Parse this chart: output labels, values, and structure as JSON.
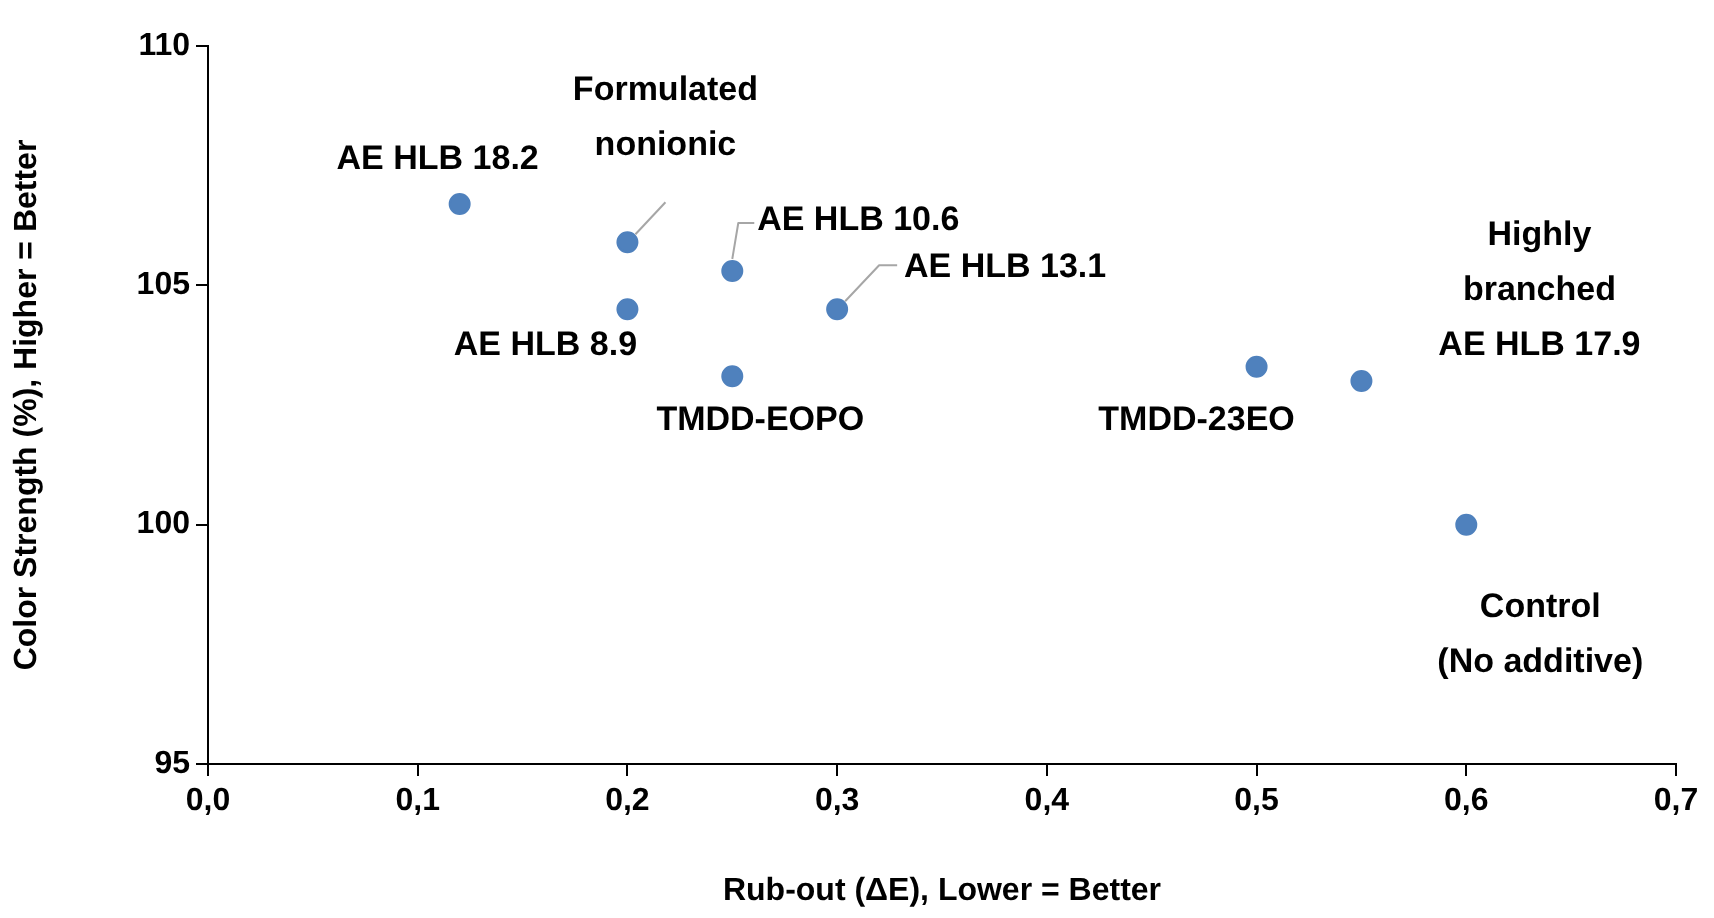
{
  "chart_data": {
    "type": "scatter",
    "xlabel": "Rub-out (ΔE), Lower = Better",
    "ylabel": "Color Strength (%), Higher = Better",
    "x": [
      0.12,
      0.2,
      0.2,
      0.25,
      0.25,
      0.3,
      0.5,
      0.55,
      0.6
    ],
    "series": [
      {
        "color": "#4f81bd",
        "values": [
          106.7,
          105.9,
          104.5,
          105.3,
          103.1,
          104.5,
          103.3,
          103.0,
          100.0
        ]
      }
    ],
    "xlim": [
      0,
      0.7
    ],
    "xticks": [
      {
        "value": 0,
        "label": "0,0"
      },
      {
        "value": 0.1,
        "label": "0,1"
      },
      {
        "value": 0.2,
        "label": "0,2"
      },
      {
        "value": 0.3,
        "label": "0,3"
      },
      {
        "value": 0.4,
        "label": "0,4"
      },
      {
        "value": 0.5,
        "label": "0,5"
      },
      {
        "value": 0.6,
        "label": "0,6"
      },
      {
        "value": 0.7,
        "label": "0,7"
      }
    ],
    "ylim": [
      95,
      110
    ],
    "yticks": [
      95,
      100,
      105,
      110
    ],
    "grid": false,
    "legend": false,
    "marker": "circle",
    "annotations": [
      {
        "text": "AE HLB 18.2",
        "x": 0.12,
        "y": 106.7
      },
      {
        "text": "Formulated\nnonionic",
        "x": 0.2,
        "y": 105.9
      },
      {
        "text": "AE HLB 8.9",
        "x": 0.2,
        "y": 104.5
      },
      {
        "text": "AE HLB 10.6",
        "x": 0.25,
        "y": 105.3
      },
      {
        "text": "TMDD-EOPO",
        "x": 0.25,
        "y": 103.1
      },
      {
        "text": "AE HLB 13.1",
        "x": 0.3,
        "y": 104.5
      },
      {
        "text": "TMDD-23EO",
        "x": 0.5,
        "y": 103.3
      },
      {
        "text": "Highly\nbranched\nAE HLB 17.9",
        "x": 0.55,
        "y": 103.0
      },
      {
        "text": "Control\n(No additive)",
        "x": 0.6,
        "y": 100.0
      }
    ]
  }
}
